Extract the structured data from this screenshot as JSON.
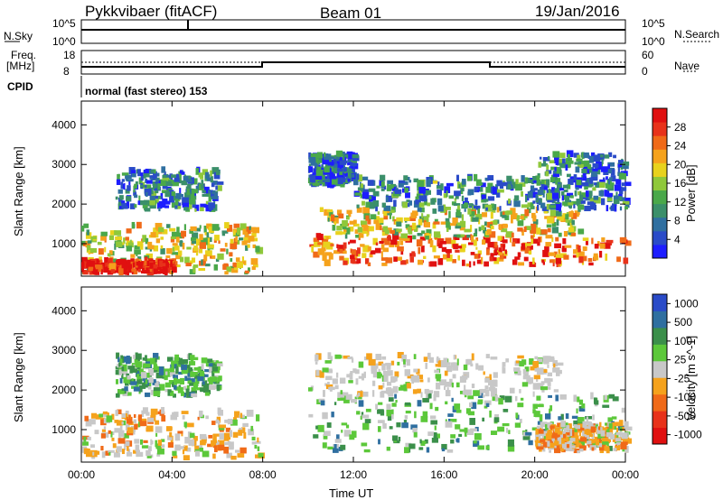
{
  "header": {
    "station": "Pykkvibaer (fitACF)",
    "beam": "Beam 01",
    "date": "19/Jan/2016"
  },
  "top_panels": {
    "nsky_label": "N.Sky",
    "nsky_ticks": [
      "10^5",
      "10^0"
    ],
    "nsearch_label": "N.Search",
    "nsearch_ticks": [
      "10^5",
      "10^0"
    ],
    "freq_label": "Freq.",
    "freq_unit": "[MHz]",
    "freq_ticks": [
      "18",
      "8"
    ],
    "nave_label": "Nave",
    "nave_ticks": [
      "60",
      "0"
    ],
    "cpid_label": "CPID",
    "cpid_text": "normal (fast stereo) 153"
  },
  "chart_data": [
    {
      "type": "heatmap",
      "panel": "power",
      "ylabel": "Slant Range [km]",
      "xlabel": "",
      "x_ticks": [
        "00:00",
        "04:00",
        "08:00",
        "12:00",
        "16:00",
        "20:00",
        "00:00"
      ],
      "y_ticks": [
        1000,
        2000,
        3000,
        4000
      ],
      "ylim": [
        180,
        4600
      ],
      "xlim_hours": [
        0,
        24
      ],
      "colorbar_label": "Power [dB]",
      "colorbar_ticks": [
        "4",
        "8",
        "12",
        "16",
        "20",
        "24",
        "28"
      ],
      "colorbar_range": [
        0,
        30
      ],
      "colorbar_colors": [
        "#1d1dff",
        "#2a4bc8",
        "#2f6fa0",
        "#3b8f6a",
        "#4aa84a",
        "#8fc83a",
        "#e8d21d",
        "#f5a21c",
        "#f06a18",
        "#e8321a",
        "#e01010"
      ],
      "regions": [
        {
          "t0": 0.0,
          "t1": 7.8,
          "r0": 220,
          "r1": 1400,
          "level": 0.55
        },
        {
          "t0": 0.0,
          "t1": 4.0,
          "r0": 200,
          "r1": 500,
          "level": 0.95
        },
        {
          "t0": 1.5,
          "t1": 6.0,
          "r0": 1800,
          "r1": 2800,
          "level": 0.25
        },
        {
          "t0": 10.0,
          "t1": 24.0,
          "r0": 400,
          "r1": 1100,
          "level": 0.8
        },
        {
          "t0": 10.5,
          "t1": 22.0,
          "r0": 1100,
          "r1": 1800,
          "level": 0.55
        },
        {
          "t0": 12.0,
          "t1": 21.0,
          "r0": 1800,
          "r1": 2600,
          "level": 0.3
        },
        {
          "t0": 10.0,
          "t1": 12.0,
          "r0": 2400,
          "r1": 3200,
          "level": 0.2
        },
        {
          "t0": 20.0,
          "t1": 24.0,
          "r0": 1800,
          "r1": 3200,
          "level": 0.25
        }
      ]
    },
    {
      "type": "heatmap",
      "panel": "velocity",
      "ylabel": "Slant Range [km]",
      "xlabel": "Time UT",
      "x_ticks": [
        "00:00",
        "04:00",
        "08:00",
        "12:00",
        "16:00",
        "20:00",
        "00:00"
      ],
      "y_ticks": [
        1000,
        2000,
        3000,
        4000
      ],
      "ylim": [
        180,
        4600
      ],
      "xlim_hours": [
        0,
        24
      ],
      "colorbar_label": "Velocity [m s^-1]",
      "colorbar_ticks": [
        "1000",
        "500",
        "100",
        "25",
        "-25",
        "-100",
        "-500",
        "-1000"
      ],
      "colorbar_colors": [
        "#2a4bc8",
        "#2f6fa0",
        "#3b8f4a",
        "#5cc83a",
        "#c8c8c8",
        "#f5a21c",
        "#f06a18",
        "#e8321a",
        "#e01010"
      ],
      "regions": [
        {
          "t0": 0.0,
          "t1": 7.8,
          "r0": 220,
          "r1": 1400,
          "level": "neg"
        },
        {
          "t0": 1.5,
          "t1": 6.0,
          "r0": 1800,
          "r1": 2800,
          "level": "pos"
        },
        {
          "t0": 10.0,
          "t1": 24.0,
          "r0": 400,
          "r1": 1800,
          "level": "pos"
        },
        {
          "t0": 10.0,
          "t1": 21.0,
          "r0": 1800,
          "r1": 2800,
          "level": "zero"
        },
        {
          "t0": 20.0,
          "t1": 24.0,
          "r0": 400,
          "r1": 1100,
          "level": "neg"
        }
      ]
    }
  ]
}
